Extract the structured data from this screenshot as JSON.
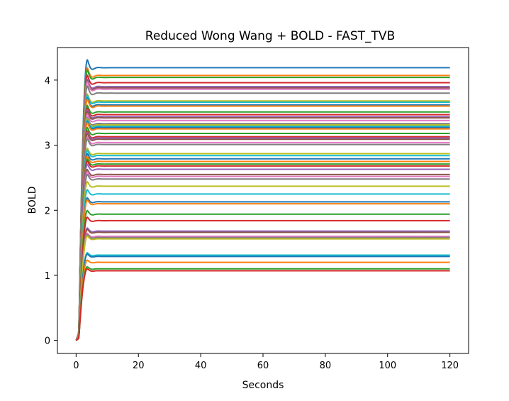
{
  "chart_data": {
    "type": "line",
    "title": "Reduced Wong Wang + BOLD - FAST_TVB",
    "xlabel": "Seconds",
    "ylabel": "BOLD",
    "xlim": [
      -6,
      126
    ],
    "ylim": [
      -0.2,
      4.5
    ],
    "xticks": [
      0,
      20,
      40,
      60,
      80,
      100,
      120
    ],
    "yticks": [
      0,
      1,
      2,
      3,
      4
    ],
    "grid": false,
    "legend": "none",
    "t_end": 120,
    "colors": [
      "#1f77b4",
      "#ff7f0e",
      "#2ca02c",
      "#d62728",
      "#9467bd",
      "#8c564b",
      "#e377c2",
      "#7f7f7f",
      "#bcbd22",
      "#17becf"
    ],
    "series": [
      {
        "steady": 4.19
      },
      {
        "steady": 4.07
      },
      {
        "steady": 4.04
      },
      {
        "steady": 3.96
      },
      {
        "steady": 3.9
      },
      {
        "steady": 3.88
      },
      {
        "steady": 3.86
      },
      {
        "steady": 3.8
      },
      {
        "steady": 3.68
      },
      {
        "steady": 3.66
      },
      {
        "steady": 3.62
      },
      {
        "steady": 3.6
      },
      {
        "steady": 3.51
      },
      {
        "steady": 3.47
      },
      {
        "steady": 3.44
      },
      {
        "steady": 3.42
      },
      {
        "steady": 3.38
      },
      {
        "steady": 3.33
      },
      {
        "steady": 3.31
      },
      {
        "steady": 3.29
      },
      {
        "steady": 3.27
      },
      {
        "steady": 3.25
      },
      {
        "steady": 3.18
      },
      {
        "steady": 3.13
      },
      {
        "steady": 3.11
      },
      {
        "steady": 3.09
      },
      {
        "steady": 3.04
      },
      {
        "steady": 3.01
      },
      {
        "steady": 2.87
      },
      {
        "steady": 2.84
      },
      {
        "steady": 2.79
      },
      {
        "steady": 2.75
      },
      {
        "steady": 2.71
      },
      {
        "steady": 2.68
      },
      {
        "steady": 2.63
      },
      {
        "steady": 2.55
      },
      {
        "steady": 2.52
      },
      {
        "steady": 2.48
      },
      {
        "steady": 2.37
      },
      {
        "steady": 2.25
      },
      {
        "steady": 2.13
      },
      {
        "steady": 2.1
      },
      {
        "steady": 1.94
      },
      {
        "steady": 1.84
      },
      {
        "steady": 1.68
      },
      {
        "steady": 1.66
      },
      {
        "steady": 1.6
      },
      {
        "steady": 1.58
      },
      {
        "steady": 1.56
      },
      {
        "steady": 1.31
      },
      {
        "steady": 1.29
      },
      {
        "steady": 1.2
      },
      {
        "steady": 1.1
      },
      {
        "steady": 1.07
      }
    ]
  }
}
